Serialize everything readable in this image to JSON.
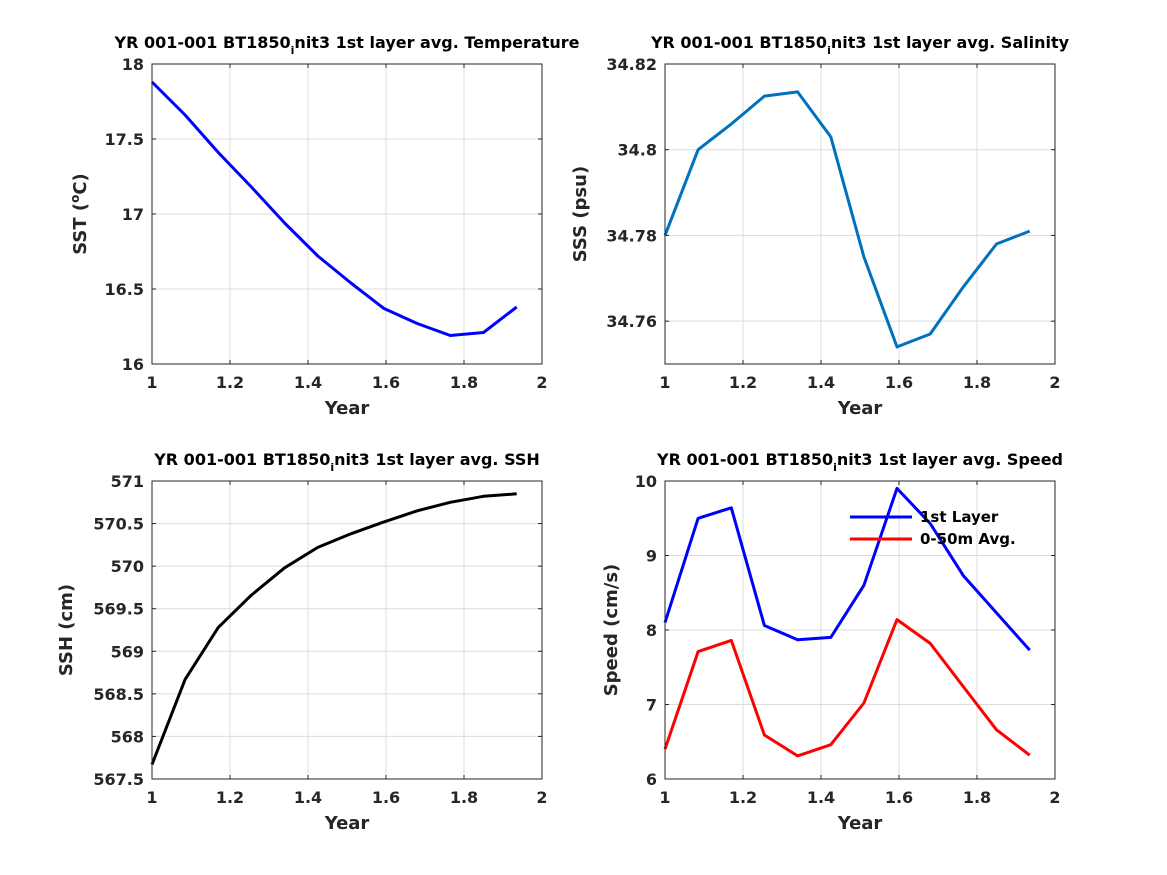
{
  "chart_data": [
    {
      "type": "line",
      "title": "YR 001-001 BT1850",
      "title_sub": "i",
      "title_rest": "nit3 1st layer avg. Temperature",
      "xlabel": "Year",
      "ylabel": "SST (",
      "ylabel_sup": "o",
      "ylabel_rest": "C)",
      "xlim": [
        1,
        2
      ],
      "ylim": [
        16,
        18
      ],
      "xticks": [
        1,
        1.2,
        1.4,
        1.6,
        1.8,
        2
      ],
      "xtick_labels": [
        "1",
        "1.2",
        "1.4",
        "1.6",
        "1.8",
        "2"
      ],
      "yticks": [
        16,
        16.5,
        17,
        17.5,
        18
      ],
      "ytick_labels": [
        "16",
        "16.5",
        "17",
        "17.5",
        "18"
      ],
      "grid": true,
      "series": [
        {
          "color": "#0000ff",
          "x": [
            1.0,
            1.085,
            1.17,
            1.255,
            1.34,
            1.425,
            1.51,
            1.595,
            1.68,
            1.765,
            1.85,
            1.935
          ],
          "values": [
            17.88,
            17.66,
            17.41,
            17.18,
            16.94,
            16.72,
            16.54,
            16.37,
            16.27,
            16.19,
            16.21,
            16.38
          ]
        }
      ]
    },
    {
      "type": "line",
      "title": "YR 001-001 BT1850",
      "title_sub": "i",
      "title_rest": "nit3 1st layer avg. Salinity",
      "xlabel": "Year",
      "ylabel": "SSS (psu)",
      "xlim": [
        1,
        2
      ],
      "ylim": [
        34.75,
        34.82
      ],
      "xticks": [
        1,
        1.2,
        1.4,
        1.6,
        1.8,
        2
      ],
      "xtick_labels": [
        "1",
        "1.2",
        "1.4",
        "1.6",
        "1.8",
        "2"
      ],
      "yticks": [
        34.76,
        34.78,
        34.8,
        34.82
      ],
      "ytick_labels": [
        "34.76",
        "34.78",
        "34.8",
        "34.82"
      ],
      "grid": true,
      "series": [
        {
          "color": "#0072bd",
          "x": [
            1.0,
            1.085,
            1.17,
            1.255,
            1.34,
            1.425,
            1.51,
            1.595,
            1.68,
            1.765,
            1.85,
            1.935
          ],
          "values": [
            34.78,
            34.8,
            34.806,
            34.8125,
            34.8135,
            34.803,
            34.775,
            34.754,
            34.757,
            34.768,
            34.778,
            34.781
          ]
        }
      ]
    },
    {
      "type": "line",
      "title": "YR 001-001 BT1850",
      "title_sub": "i",
      "title_rest": "nit3 1st layer avg. SSH",
      "xlabel": "Year",
      "ylabel": "SSH (cm)",
      "xlim": [
        1,
        2
      ],
      "ylim": [
        567.5,
        571
      ],
      "xticks": [
        1,
        1.2,
        1.4,
        1.6,
        1.8,
        2
      ],
      "xtick_labels": [
        "1",
        "1.2",
        "1.4",
        "1.6",
        "1.8",
        "2"
      ],
      "yticks": [
        567.5,
        568,
        568.5,
        569,
        569.5,
        570,
        570.5,
        571
      ],
      "ytick_labels": [
        "567.5",
        "568",
        "568.5",
        "569",
        "569.5",
        "570",
        "570.5",
        "571"
      ],
      "grid": true,
      "series": [
        {
          "color": "#000000",
          "x": [
            1.0,
            1.085,
            1.17,
            1.255,
            1.34,
            1.425,
            1.51,
            1.595,
            1.68,
            1.765,
            1.85,
            1.935
          ],
          "values": [
            567.67,
            568.67,
            569.28,
            569.66,
            569.98,
            570.22,
            570.38,
            570.52,
            570.65,
            570.75,
            570.82,
            570.85
          ]
        }
      ]
    },
    {
      "type": "line",
      "title": "YR 001-001 BT1850",
      "title_sub": "i",
      "title_rest": "nit3 1st layer avg. Speed",
      "xlabel": "Year",
      "ylabel": "Speed (cm/s)",
      "xlim": [
        1,
        2
      ],
      "ylim": [
        6,
        10
      ],
      "xticks": [
        1,
        1.2,
        1.4,
        1.6,
        1.8,
        2
      ],
      "xtick_labels": [
        "1",
        "1.2",
        "1.4",
        "1.6",
        "1.8",
        "2"
      ],
      "yticks": [
        6,
        7,
        8,
        9,
        10
      ],
      "ytick_labels": [
        "6",
        "7",
        "8",
        "9",
        "10"
      ],
      "grid": true,
      "legend": "top-right",
      "series": [
        {
          "name": "1st Layer",
          "color": "#0000ff",
          "x": [
            1.0,
            1.085,
            1.17,
            1.255,
            1.34,
            1.425,
            1.51,
            1.595,
            1.68,
            1.765,
            1.85,
            1.935
          ],
          "values": [
            8.1,
            9.5,
            9.64,
            8.06,
            7.87,
            7.9,
            8.6,
            9.9,
            9.43,
            8.73,
            8.23,
            7.73
          ]
        },
        {
          "name": "0-50m Avg.",
          "color": "#ff0000",
          "x": [
            1.0,
            1.085,
            1.17,
            1.255,
            1.34,
            1.425,
            1.51,
            1.595,
            1.68,
            1.765,
            1.85,
            1.935
          ],
          "values": [
            6.4,
            7.71,
            7.86,
            6.59,
            6.31,
            6.46,
            7.02,
            8.14,
            7.82,
            7.24,
            6.66,
            6.32
          ]
        }
      ]
    }
  ]
}
